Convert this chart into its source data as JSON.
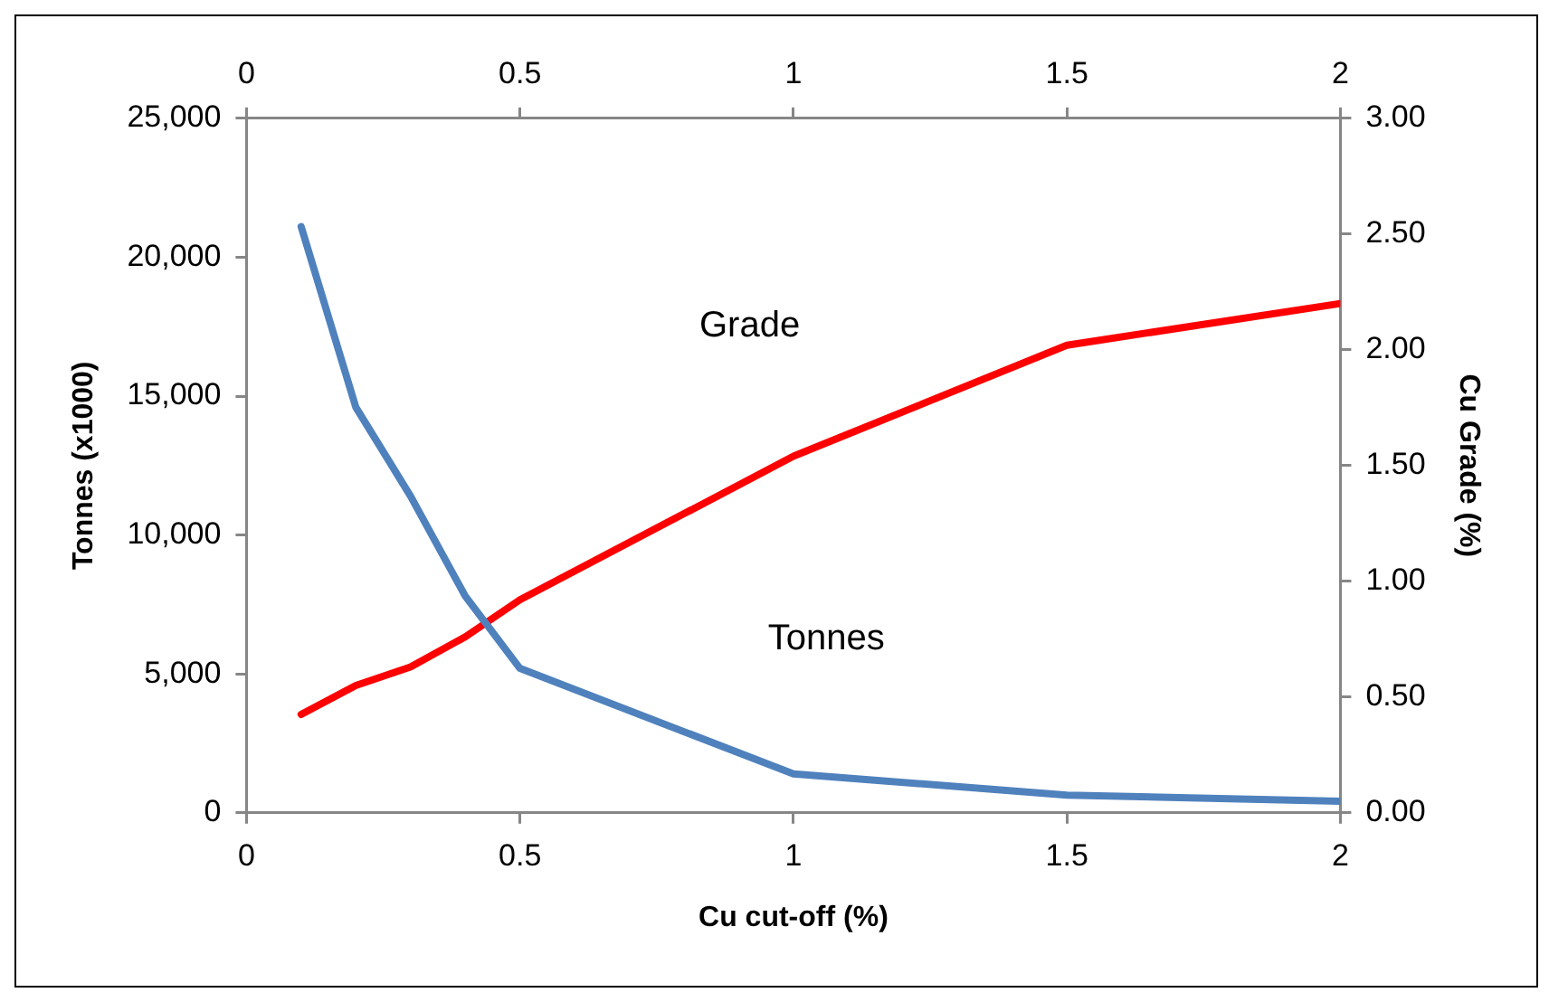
{
  "chart_data": {
    "type": "line",
    "xlabel": "Cu cut-off (%)",
    "ylabel": "Tonnes (x1000)",
    "y2label": "Cu Grade (%)",
    "x": [
      0.1,
      0.2,
      0.3,
      0.4,
      0.5,
      1,
      1.5,
      2
    ],
    "series": [
      {
        "color": "#4f81bd",
        "values": [
          21100,
          14600,
          11400,
          7800,
          5200,
          1400,
          640,
          420
        ]
      },
      {
        "color": "#ff0000",
        "axis": "y2",
        "values": [
          0.425,
          0.55,
          0.63,
          0.76,
          0.92,
          1.54,
          2.02,
          2.2
        ]
      }
    ],
    "xlim": [
      0,
      2
    ],
    "xticks": [
      0,
      0.5,
      1,
      1.5,
      2
    ],
    "x2lim": [
      0,
      2
    ],
    "x2ticks": [
      0,
      0.5,
      1,
      1.5,
      2
    ],
    "ylim": [
      0,
      25000
    ],
    "yticks": [
      {
        "value": 0,
        "label": "0"
      },
      {
        "value": 5000,
        "label": "5,000"
      },
      {
        "value": 10000,
        "label": "10,000"
      },
      {
        "value": 15000,
        "label": "15,000"
      },
      {
        "value": 20000,
        "label": "20,000"
      },
      {
        "value": 25000,
        "label": "25,000"
      }
    ],
    "y2lim": [
      0,
      3
    ],
    "y2ticks": [
      {
        "value": 0,
        "label": "0.00"
      },
      {
        "value": 0.5,
        "label": "0.50"
      },
      {
        "value": 1,
        "label": "1.00"
      },
      {
        "value": 1.5,
        "label": "1.50"
      },
      {
        "value": 2,
        "label": "2.00"
      },
      {
        "value": 2.5,
        "label": "2.50"
      },
      {
        "value": 3,
        "label": "3.00"
      }
    ],
    "annotations": [
      "Grade",
      "Tonnes"
    ],
    "grid": false,
    "legend": false,
    "marker": "none",
    "line_style": "solid"
  }
}
